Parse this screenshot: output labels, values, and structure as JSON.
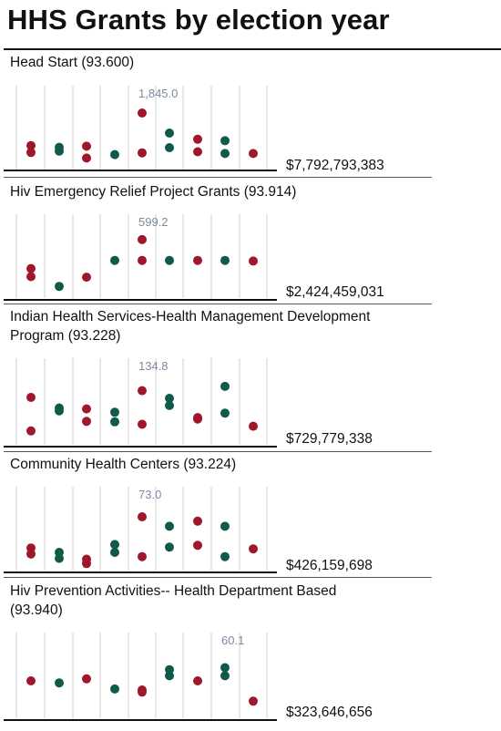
{
  "page": {
    "title": "HHS Grants by election year"
  },
  "colors": {
    "red": "#a0162a",
    "green": "#0f5a4a"
  },
  "chart_data": [
    {
      "type": "scatter",
      "title": "Head Start (93.600)",
      "total": "$7,792,793,383",
      "ylim": [
        0,
        2000
      ],
      "annotation": {
        "text": "1,845.0",
        "col": 4
      },
      "points": [
        {
          "col": 0,
          "color": "red",
          "value": 640
        },
        {
          "col": 0,
          "color": "red",
          "value": 440
        },
        {
          "col": 1,
          "color": "green",
          "value": 590
        },
        {
          "col": 1,
          "color": "green",
          "value": 480
        },
        {
          "col": 2,
          "color": "red",
          "value": 620
        },
        {
          "col": 2,
          "color": "red",
          "value": 280
        },
        {
          "col": 3,
          "color": "green",
          "value": 380
        },
        {
          "col": 4,
          "color": "red",
          "value": 1580
        },
        {
          "col": 4,
          "color": "red",
          "value": 430
        },
        {
          "col": 5,
          "color": "green",
          "value": 1000
        },
        {
          "col": 5,
          "color": "green",
          "value": 580
        },
        {
          "col": 6,
          "color": "red",
          "value": 820
        },
        {
          "col": 6,
          "color": "red",
          "value": 460
        },
        {
          "col": 7,
          "color": "green",
          "value": 780
        },
        {
          "col": 7,
          "color": "green",
          "value": 410
        },
        {
          "col": 8,
          "color": "red",
          "value": 410
        }
      ]
    },
    {
      "type": "scatter",
      "title": "Hiv Emergency Relief Project Grants (93.914)",
      "total": "$2,424,459,031",
      "ylim": [
        0,
        600
      ],
      "annotation": {
        "text": "599.2",
        "col": 4
      },
      "points": [
        {
          "col": 0,
          "color": "red",
          "value": 240
        },
        {
          "col": 0,
          "color": "red",
          "value": 170
        },
        {
          "col": 1,
          "color": "green",
          "value": 85
        },
        {
          "col": 2,
          "color": "red",
          "value": 165
        },
        {
          "col": 3,
          "color": "green",
          "value": 310
        },
        {
          "col": 4,
          "color": "red",
          "value": 490
        },
        {
          "col": 4,
          "color": "red",
          "value": 310
        },
        {
          "col": 5,
          "color": "green",
          "value": 310
        },
        {
          "col": 6,
          "color": "red",
          "value": 310
        },
        {
          "col": 7,
          "color": "green",
          "value": 310
        },
        {
          "col": 8,
          "color": "red",
          "value": 305
        }
      ]
    },
    {
      "type": "scatter",
      "title": "Indian Health Services-Health Management Development Program (93.228)",
      "total": "$729,779,338",
      "ylim": [
        0,
        150
      ],
      "annotation": {
        "text": "134.8",
        "col": 4
      },
      "points": [
        {
          "col": 0,
          "color": "red",
          "value": 95
        },
        {
          "col": 0,
          "color": "red",
          "value": 25
        },
        {
          "col": 1,
          "color": "green",
          "value": 73
        },
        {
          "col": 1,
          "color": "green",
          "value": 67
        },
        {
          "col": 2,
          "color": "red",
          "value": 71
        },
        {
          "col": 2,
          "color": "red",
          "value": 45
        },
        {
          "col": 3,
          "color": "green",
          "value": 64
        },
        {
          "col": 3,
          "color": "green",
          "value": 44
        },
        {
          "col": 4,
          "color": "red",
          "value": 109
        },
        {
          "col": 4,
          "color": "red",
          "value": 39
        },
        {
          "col": 5,
          "color": "green",
          "value": 93
        },
        {
          "col": 5,
          "color": "green",
          "value": 78
        },
        {
          "col": 6,
          "color": "red",
          "value": 53
        },
        {
          "col": 6,
          "color": "red",
          "value": 50
        },
        {
          "col": 7,
          "color": "green",
          "value": 118
        },
        {
          "col": 7,
          "color": "green",
          "value": 62
        },
        {
          "col": 8,
          "color": "red",
          "value": 35
        }
      ]
    },
    {
      "type": "scatter",
      "title": "Community Health Centers (93.224)",
      "total": "$426,159,698",
      "ylim": [
        0,
        80
      ],
      "annotation": {
        "text": "73.0",
        "col": 4
      },
      "points": [
        {
          "col": 0,
          "color": "red",
          "value": 24
        },
        {
          "col": 0,
          "color": "red",
          "value": 17
        },
        {
          "col": 1,
          "color": "green",
          "value": 19
        },
        {
          "col": 1,
          "color": "green",
          "value": 12
        },
        {
          "col": 2,
          "color": "red",
          "value": 11
        },
        {
          "col": 2,
          "color": "red",
          "value": 6
        },
        {
          "col": 3,
          "color": "green",
          "value": 28
        },
        {
          "col": 3,
          "color": "green",
          "value": 19
        },
        {
          "col": 4,
          "color": "red",
          "value": 60
        },
        {
          "col": 4,
          "color": "red",
          "value": 14
        },
        {
          "col": 5,
          "color": "green",
          "value": 49
        },
        {
          "col": 5,
          "color": "green",
          "value": 25
        },
        {
          "col": 6,
          "color": "red",
          "value": 55
        },
        {
          "col": 6,
          "color": "red",
          "value": 27
        },
        {
          "col": 7,
          "color": "green",
          "value": 49
        },
        {
          "col": 7,
          "color": "green",
          "value": 14
        },
        {
          "col": 8,
          "color": "red",
          "value": 23
        }
      ]
    },
    {
      "type": "scatter",
      "title": "Hiv Prevention Activities-- Health Department Based (93.940)",
      "total": "$323,646,656",
      "ylim": [
        0,
        70
      ],
      "annotation": {
        "text": "60.1",
        "col": 7
      },
      "points": [
        {
          "col": 0,
          "color": "red",
          "value": 35
        },
        {
          "col": 1,
          "color": "green",
          "value": 33
        },
        {
          "col": 2,
          "color": "red",
          "value": 37
        },
        {
          "col": 3,
          "color": "green",
          "value": 27
        },
        {
          "col": 4,
          "color": "red",
          "value": 26
        },
        {
          "col": 4,
          "color": "red",
          "value": 24
        },
        {
          "col": 5,
          "color": "green",
          "value": 46
        },
        {
          "col": 5,
          "color": "green",
          "value": 40
        },
        {
          "col": 6,
          "color": "red",
          "value": 35
        },
        {
          "col": 7,
          "color": "green",
          "value": 48
        },
        {
          "col": 7,
          "color": "green",
          "value": 40
        },
        {
          "col": 8,
          "color": "red",
          "value": 15
        }
      ]
    }
  ]
}
